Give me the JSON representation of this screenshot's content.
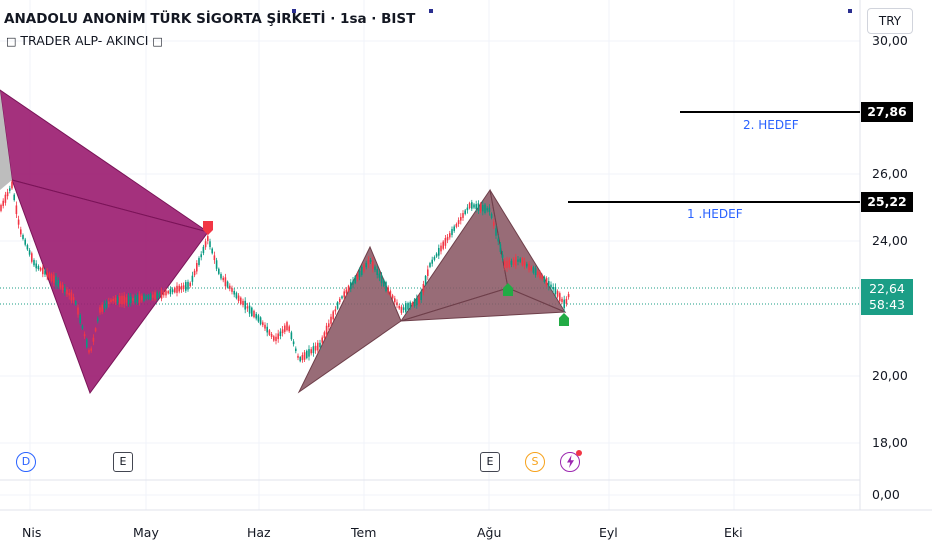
{
  "header": {
    "title": "ANADOLU ANONİM TÜRK SİGORTA ŞİRKETİ · 1sa · BIST",
    "indicator_icon_left": "□",
    "indicator_name": "TRADER ALP- AKINCI",
    "indicator_icon_right": "□"
  },
  "currency_button": "TRY",
  "y_axis": {
    "ticks": [
      "30,00",
      "26,00",
      "24,00",
      "20,00",
      "18,00",
      "0,00"
    ]
  },
  "x_axis": {
    "ticks": [
      "Nis",
      "May",
      "Haz",
      "Tem",
      "Ağu",
      "Eyl",
      "Eki"
    ]
  },
  "price_tags": {
    "target2": "27,86",
    "target1": "25,22",
    "last_price": "22,64",
    "countdown": "58:43"
  },
  "targets": {
    "label2": "2. HEDEF",
    "label1": "1 .HEDEF"
  },
  "events": {
    "dividend": "D",
    "earnings1": "E",
    "earnings2": "E",
    "split": "S",
    "flash_icon": "lightning-icon"
  },
  "colors": {
    "up": "#089981",
    "down": "#f23645",
    "pattern_left": "#9c1f72",
    "pattern_right": "#8a5864",
    "target_line": "#000000",
    "last_price_bg": "#1b9e86",
    "target_text": "#2962ff"
  }
}
